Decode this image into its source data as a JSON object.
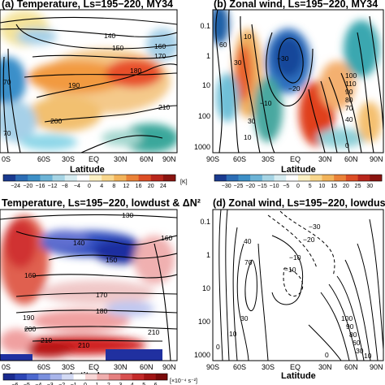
{
  "chart_data": [
    {
      "type": "heatmap",
      "panel": "a",
      "title": "(a) Temperature, Ls=195−220, MY34",
      "xlabel": "Latitude",
      "x_ticks": [
        "0S",
        "60S",
        "30S",
        "EQ",
        "30N",
        "60N",
        "90N"
      ],
      "colorbar": {
        "ticks": [
          "−24",
          "−20",
          "−16",
          "−12",
          "−8",
          "−4",
          "0",
          "4",
          "8",
          "12",
          "16",
          "20",
          "24"
        ],
        "unit": "[K]"
      },
      "contour_labels": [
        "140",
        "150",
        "160",
        "170",
        "180",
        "190",
        "200",
        "210",
        "70",
        "70"
      ]
    },
    {
      "type": "heatmap",
      "panel": "b",
      "title": "(b) Zonal wind, Ls=195−220, MY34",
      "xlabel": "Latitude",
      "x_ticks": [
        "90S",
        "60S",
        "30S",
        "EQ",
        "30N",
        "60N",
        "90N"
      ],
      "y_ticks": [
        "0.1",
        "1",
        "10",
        "100",
        "1000"
      ],
      "colorbar": {
        "ticks": [
          "−30",
          "−25",
          "−20",
          "−15",
          "−10",
          "−5",
          "0",
          "5",
          "10",
          "15",
          "20",
          "25",
          "30"
        ]
      },
      "contour_labels": [
        "−30",
        "−20",
        "−10",
        "60",
        "30",
        "10",
        "100",
        "110",
        "90",
        "80",
        "70",
        "40",
        "30",
        "10",
        "0"
      ]
    },
    {
      "type": "heatmap",
      "panel": "c",
      "title": "Temperature, Ls=195−220, lowdust & ΔN²",
      "xlabel": "Latitude",
      "x_ticks": [
        "0S",
        "60S",
        "30S",
        "EQ",
        "30N",
        "60N",
        "90N"
      ],
      "colorbar": {
        "ticks": [
          "−6",
          "−5",
          "−4",
          "−3",
          "−2",
          "−1",
          "0",
          "1",
          "2",
          "3",
          "4",
          "5",
          "6"
        ],
        "unit": "[×10⁻⁴ s⁻²]"
      },
      "contour_labels": [
        "130",
        "140",
        "150",
        "160",
        "160",
        "170",
        "180",
        "190",
        "200",
        "210",
        "210",
        "210"
      ]
    },
    {
      "type": "heatmap",
      "panel": "d",
      "title": "(d) Zonal wind, Ls=195−220, lowdus",
      "xlabel": "Latitude",
      "x_ticks": [
        "90S",
        "60S",
        "30S",
        "EQ",
        "30N",
        "60N",
        "90N"
      ],
      "y_ticks": [
        "0.1",
        "1",
        "10",
        "100",
        "1000"
      ],
      "contour_labels": [
        "−30",
        "−20",
        "−10",
        "−10",
        "40",
        "70",
        "30",
        "10",
        "100",
        "90",
        "80",
        "60",
        "30",
        "10",
        "0",
        "0"
      ]
    }
  ]
}
